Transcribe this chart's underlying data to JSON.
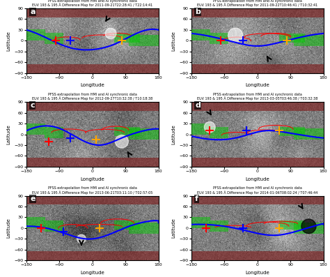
{
  "title": "PFSS extrapolation from HMI and AI synchronic data",
  "panels": [
    {
      "label": "a",
      "subtitle1": "PFSS extrapolation from HMI and AI synchronic data",
      "subtitle2": "EUV 193 & 195 Å Difference Map for 2011-09-21T22:28:41 / T22:14:41"
    },
    {
      "label": "b",
      "subtitle1": "PFSS extrapolation from HMI and AI synchronic data",
      "subtitle2": "EUV 193 & 195 Å Difference Map for 2011-09-22T10:46:41 / T10:32:41"
    },
    {
      "label": "c",
      "subtitle1": "PFSS extrapolation from HMI and AI synchronic data",
      "subtitle2": "EUV 193 & 195 Å Difference Map for 2012-09-27T10:32:38 / T10:18:38"
    },
    {
      "label": "d",
      "subtitle1": "PFSS extrapolation from HMI and AI synchronic data",
      "subtitle2": "EUV 193 & 195 Å Difference Map for 2013-03-05T03:46:38 / T03:32:38"
    },
    {
      "label": "e",
      "subtitle1": "PFSS extrapolation from HMI and AI synchronic data",
      "subtitle2": "EUV 193 & 195 Å Difference Map for 2013-06-21T03:11:10 / T02:57:05"
    },
    {
      "label": "f",
      "subtitle1": "PFSS extrapolation from HMI and AI synchronic data",
      "subtitle2": "EUV 193 & 195 Å Difference Map for 2014-01-06T08:02:24 / T07:46:44"
    }
  ],
  "xlabel": "Longitude",
  "ylabel": "Latitude",
  "xlim": [
    -180,
    180
  ],
  "ylim": [
    -90,
    90
  ],
  "xticks": [
    -180,
    -90,
    0,
    90,
    180
  ],
  "yticks": [
    -90,
    -60,
    -30,
    0,
    30,
    60,
    90
  ],
  "bg_color": "#888888",
  "blue_color": "#0000ff",
  "green_color": "#00ff00",
  "red_color": "#ff0000",
  "panel_bg": "#888888",
  "figsize": [
    4.74,
    3.97
  ],
  "dpi": 100
}
